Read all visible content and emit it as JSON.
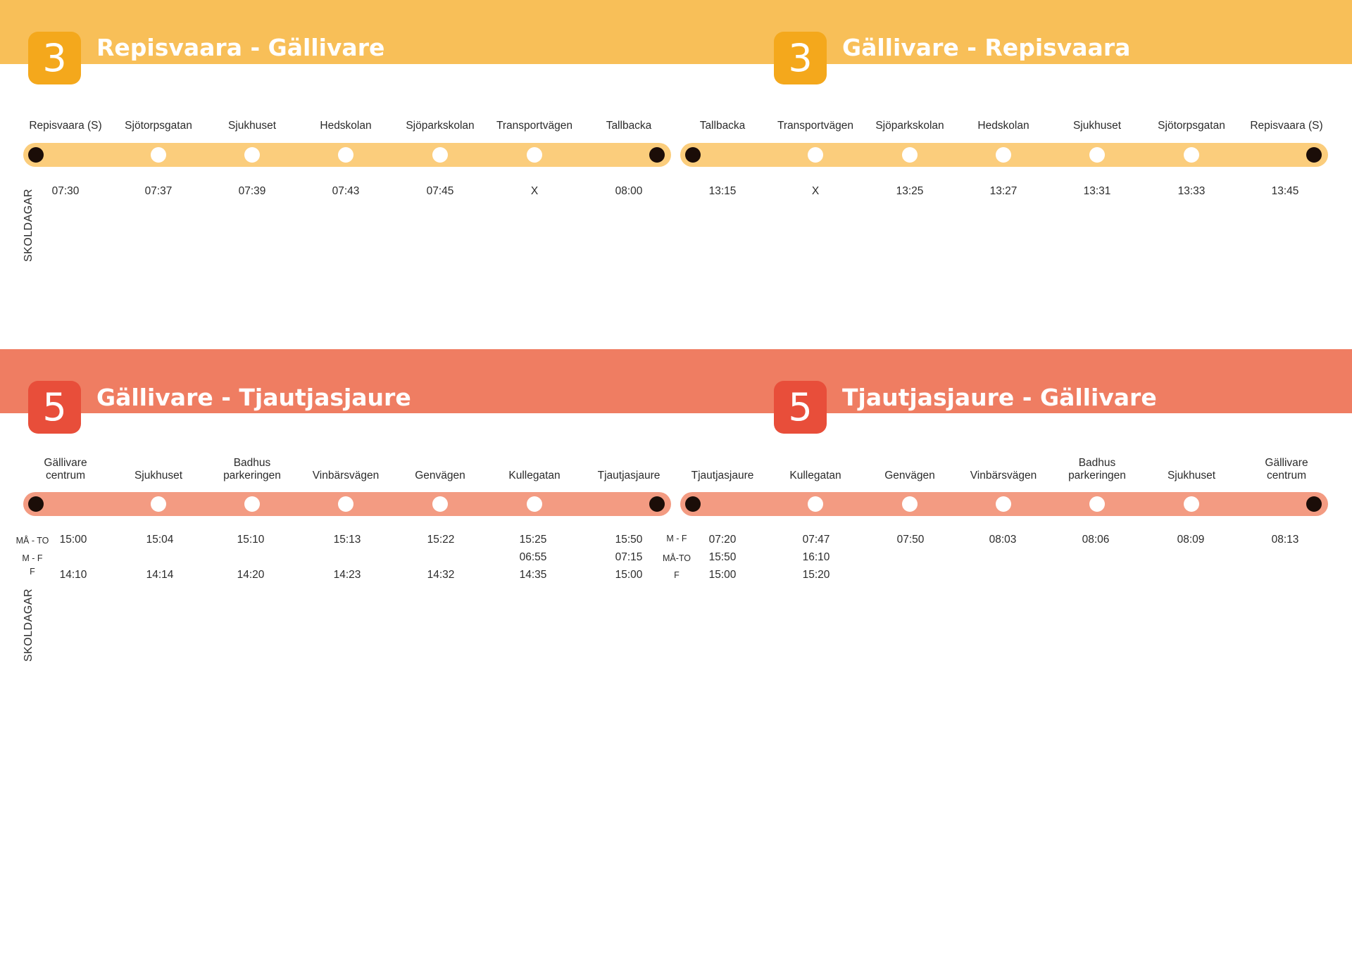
{
  "colors": {
    "route3_band": "#f8bf58",
    "route3_badge": "#f4a81c",
    "route3_track": "#fbcd7c",
    "route5_band": "#ef7d62",
    "route5_badge": "#e84e3a",
    "route5_track": "#f39b82",
    "terminal_dot": "#1b0d08",
    "stop_dot": "#ffffff"
  },
  "route3": {
    "number": "3",
    "side_label": "SKOLDAGAR",
    "left": {
      "title": "Repisvaara - Gällivare",
      "stops": [
        "Repisvaara (S)",
        "Sjötorpsgatan",
        "Sjukhuset",
        "Hedskolan",
        "Sjöparkskolan",
        "Transportvägen",
        "Tallbacka"
      ],
      "times": [
        "07:30",
        "07:37",
        "07:39",
        "07:43",
        "07:45",
        "X",
        "08:00"
      ]
    },
    "right": {
      "title": "Gällivare - Repisvaara",
      "stops": [
        "Tallbacka",
        "Transportvägen",
        "Sjöparkskolan",
        "Hedskolan",
        "Sjukhuset",
        "Sjötorpsgatan",
        "Repisvaara (S)"
      ],
      "times": [
        "13:15",
        "X",
        "13:25",
        "13:27",
        "13:31",
        "13:33",
        "13:45"
      ]
    }
  },
  "route5": {
    "number": "5",
    "side_label": "SKOLDAGAR",
    "left": {
      "title": "Gällivare - Tjautjasjaure",
      "stops": [
        "Gällivare\ncentrum",
        "Sjukhuset",
        "Badhus\nparkeringen",
        "Vinbärsvägen",
        "Genvägen",
        "Kullegatan",
        "Tjautjasjaure"
      ],
      "row_labels": [
        "MÅ - TO",
        "M - F",
        "F"
      ],
      "rows": [
        [
          "15:00",
          "15:04",
          "15:10",
          "15:13",
          "15:22",
          "15:25",
          "15:50"
        ],
        [
          "",
          "",
          "",
          "",
          "",
          "06:55",
          "07:15"
        ],
        [
          "14:10",
          "14:14",
          "14:20",
          "14:23",
          "14:32",
          "14:35",
          "15:00"
        ]
      ]
    },
    "right": {
      "title": "Tjautjasjaure - Gällivare",
      "stops": [
        "Tjautjasjaure",
        "Kullegatan",
        "Genvägen",
        "Vinbärsvägen",
        "Badhus\nparkeringen",
        "Sjukhuset",
        "Gällivare\ncentrum"
      ],
      "row_labels": [
        "M - F",
        "MÅ-TO",
        "F"
      ],
      "rows": [
        [
          "07:20",
          "07:47",
          "07:50",
          "08:03",
          "08:06",
          "08:09",
          "08:13"
        ],
        [
          "15:50",
          "16:10",
          "",
          "",
          "",
          "",
          ""
        ],
        [
          "15:00",
          "15:20",
          "",
          "",
          "",
          "",
          ""
        ]
      ]
    }
  }
}
